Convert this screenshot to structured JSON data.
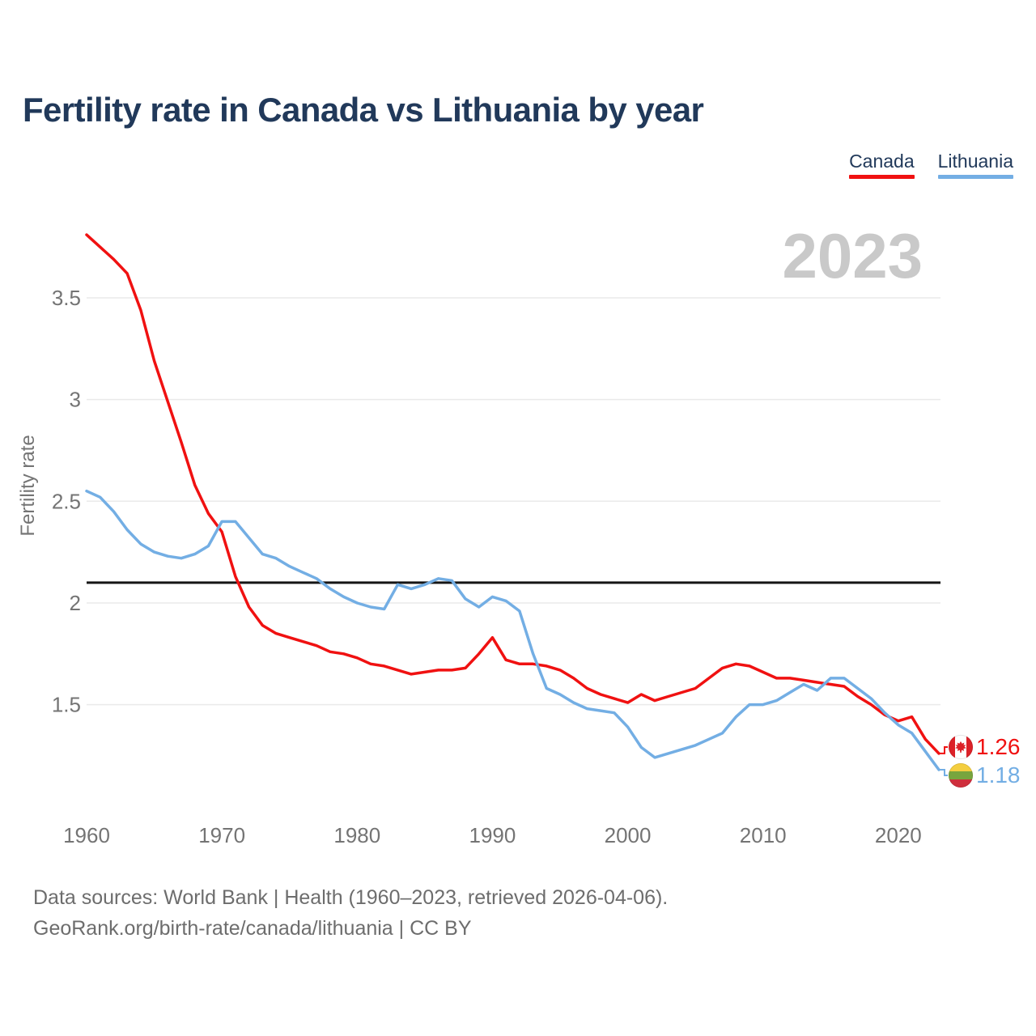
{
  "header": {
    "title": "Fertility rate in Canada vs Lithuania by year"
  },
  "legend": [
    {
      "label": "Canada",
      "color": "#f01111"
    },
    {
      "label": "Lithuania",
      "color": "#73aee4"
    }
  ],
  "watermark": "2023",
  "footer": {
    "line1": "Data sources: World Bank | Health (1960–2023, retrieved 2026-04-06).",
    "line2": "GeoRank.org/birth-rate/canada/lithuania | CC BY"
  },
  "flags": {
    "canada": {
      "field": "#ffffff",
      "bar": "#dc2128"
    },
    "lithuania": {
      "stripes": [
        "#f4ce3f",
        "#78a53e",
        "#cf2e3c"
      ]
    }
  },
  "chart_data": {
    "type": "line",
    "title": "Fertility rate in Canada vs Lithuania by year",
    "xlabel": "",
    "ylabel": "Fertility rate",
    "xlim": [
      1960,
      2023
    ],
    "x_step": 1,
    "ylim": [
      1.05,
      3.9
    ],
    "x_ticks": [
      1960,
      1970,
      1980,
      1990,
      2000,
      2010,
      2020
    ],
    "y_ticks": [
      1.5,
      2,
      2.5,
      3,
      3.5
    ],
    "grid": "horizontal",
    "legend_position": "top-right",
    "reference_line": 2.1,
    "reference_line_color": "#151515",
    "series": [
      {
        "name": "Canada",
        "color": "#f01111",
        "flag": "canada",
        "end_label": "1.26",
        "values": [
          3.81,
          3.75,
          3.69,
          3.62,
          3.44,
          3.19,
          2.99,
          2.79,
          2.58,
          2.44,
          2.35,
          2.13,
          1.98,
          1.89,
          1.85,
          1.83,
          1.81,
          1.79,
          1.76,
          1.75,
          1.73,
          1.7,
          1.69,
          1.67,
          1.65,
          1.66,
          1.67,
          1.67,
          1.68,
          1.75,
          1.83,
          1.72,
          1.7,
          1.7,
          1.69,
          1.67,
          1.63,
          1.58,
          1.55,
          1.53,
          1.51,
          1.55,
          1.52,
          1.54,
          1.56,
          1.58,
          1.63,
          1.68,
          1.7,
          1.69,
          1.66,
          1.63,
          1.63,
          1.62,
          1.61,
          1.6,
          1.59,
          1.54,
          1.5,
          1.45,
          1.42,
          1.44,
          1.33,
          1.26
        ]
      },
      {
        "name": "Lithuania",
        "color": "#73aee4",
        "flag": "lithuania",
        "end_label": "1.18",
        "values": [
          2.55,
          2.52,
          2.45,
          2.36,
          2.29,
          2.25,
          2.23,
          2.22,
          2.24,
          2.28,
          2.4,
          2.4,
          2.32,
          2.24,
          2.22,
          2.18,
          2.15,
          2.12,
          2.07,
          2.03,
          2.0,
          1.98,
          1.97,
          2.09,
          2.07,
          2.09,
          2.12,
          2.11,
          2.02,
          1.98,
          2.03,
          2.01,
          1.96,
          1.75,
          1.58,
          1.55,
          1.51,
          1.48,
          1.47,
          1.46,
          1.39,
          1.29,
          1.24,
          1.26,
          1.28,
          1.3,
          1.33,
          1.36,
          1.44,
          1.5,
          1.5,
          1.52,
          1.56,
          1.6,
          1.57,
          1.63,
          1.63,
          1.58,
          1.53,
          1.46,
          1.4,
          1.36,
          1.27,
          1.18
        ]
      }
    ]
  }
}
